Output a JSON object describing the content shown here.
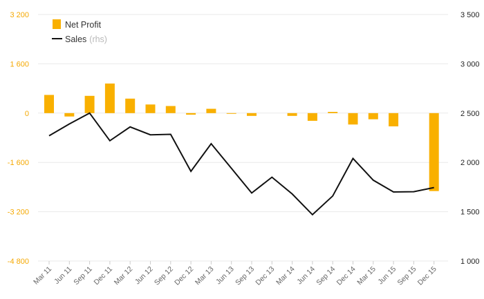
{
  "colors": {
    "bar": "#f9b000",
    "line": "#111111",
    "grid": "#e9e9e9",
    "left_axis_text": "#f5a800",
    "right_axis_text": "#222222",
    "x_axis_text": "#666666"
  },
  "chart_data": {
    "type": "bar",
    "categories": [
      "Mar 11",
      "Jun 11",
      "Sep 11",
      "Dec 11",
      "Mar 12",
      "Jun 12",
      "Sep 12",
      "Dec 12",
      "Mar 13",
      "Jun 13",
      "Sep 13",
      "Dec 13",
      "Mar 14",
      "Jun 14",
      "Sep 14",
      "Dec 14",
      "Mar 15",
      "Jun 15",
      "Sep 15",
      "Dec 15"
    ],
    "series": [
      {
        "name": "Net Profit",
        "type": "bar",
        "axis": "left",
        "values": [
          590,
          -110,
          560,
          960,
          470,
          280,
          230,
          -50,
          140,
          -20,
          -90,
          0,
          -90,
          -250,
          40,
          -370,
          -200,
          -430,
          0,
          -2530
        ]
      },
      {
        "name": "Sales",
        "type": "line",
        "axis": "right",
        "values": [
          2270,
          2390,
          2500,
          2220,
          2360,
          2280,
          2285,
          1910,
          2190,
          1940,
          1690,
          1850,
          1680,
          1470,
          1660,
          2040,
          1820,
          1700,
          1703,
          1745
        ]
      }
    ],
    "left_axis": {
      "ylim": [
        -4800,
        3200
      ],
      "ticks": [
        3200,
        1600,
        0,
        -1600,
        -3200,
        -4800
      ],
      "tick_labels": [
        "3 200",
        "1 600",
        "0",
        "-1 600",
        "-3 200",
        "-4 800"
      ]
    },
    "right_axis": {
      "ylim": [
        1000,
        3500
      ],
      "ticks": [
        3500,
        3000,
        2500,
        2000,
        1500,
        1000
      ],
      "tick_labels": [
        "3 500",
        "3 000",
        "2 500",
        "2 000",
        "1 500",
        "1 000"
      ]
    },
    "legend": {
      "placement": "top-left",
      "items": [
        {
          "label": "Net Profit",
          "note": ""
        },
        {
          "label": "Sales",
          "note": "(rhs)"
        }
      ]
    },
    "grid": true
  }
}
